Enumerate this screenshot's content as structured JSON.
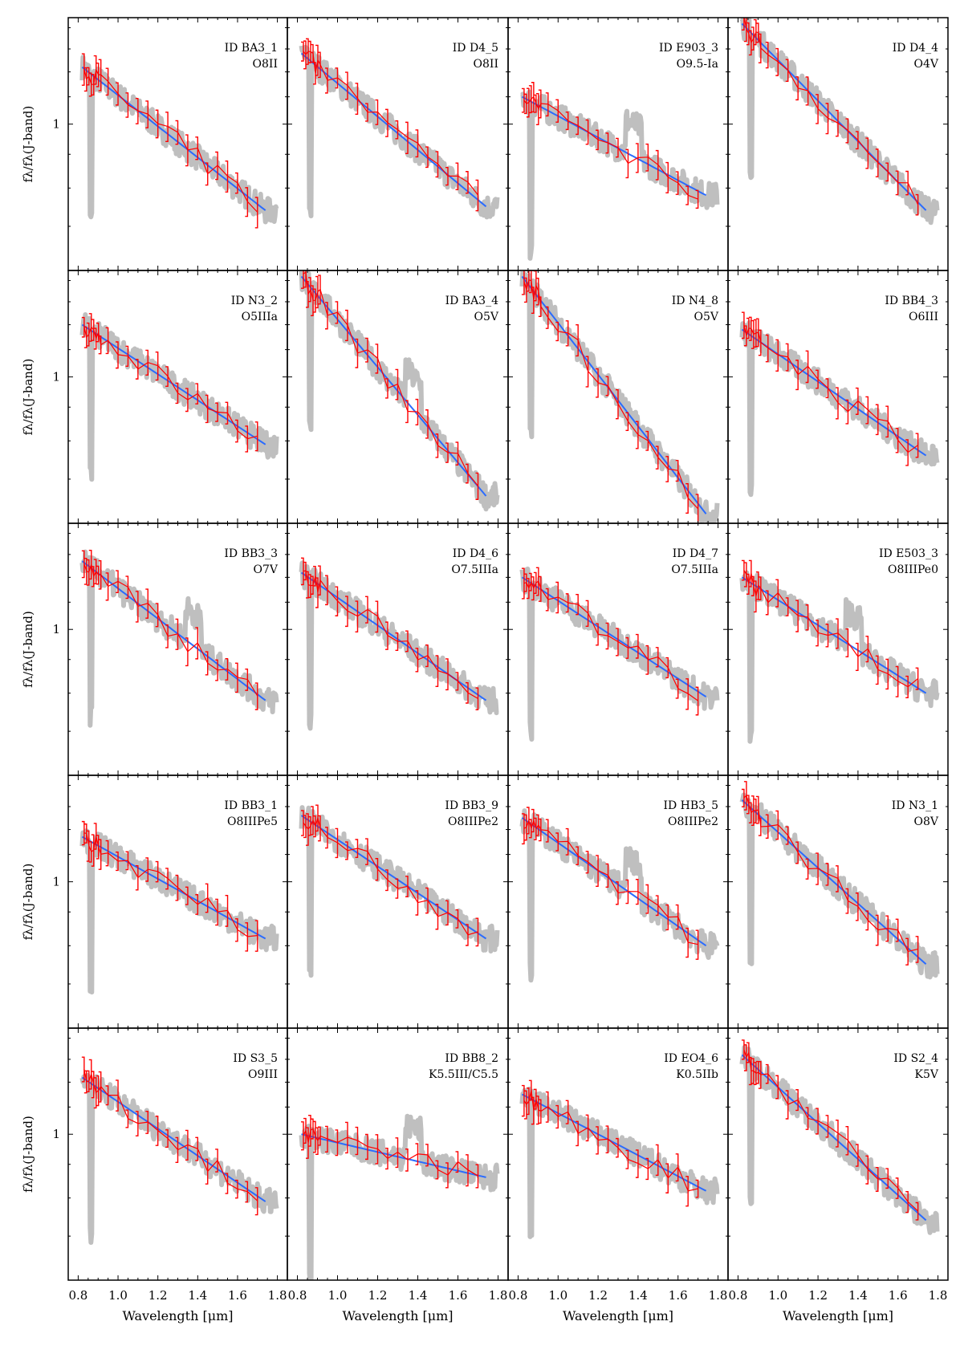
{
  "figure": {
    "x_axis_label": "Wavelength [μm]",
    "y_axis_label": "fλ/fλ(J-band)",
    "y_tick_label": "1"
  },
  "colors": {
    "observed_error_bars": "#ff0000",
    "model_fit": "#2a6bff",
    "template_spectrum": "#bfbfbf",
    "frame": "#000000"
  },
  "chart_data": {
    "type": "line",
    "layout": "5 rows x 4 columns grid of panels",
    "xlim": [
      0.75,
      1.85
    ],
    "x_ticks": [
      0.8,
      1.0,
      1.2,
      1.4,
      1.6,
      1.8
    ],
    "x_tick_labels": [
      "0.8",
      "1.0",
      "1.2",
      "1.4",
      "1.6",
      "1.8"
    ],
    "ylim": [
      0.6,
      1.45
    ],
    "y_scale": "log",
    "y_ticks": [
      1
    ],
    "xlabel": "Wavelength [μm]",
    "ylabel": "fλ/fλ(J-band)",
    "series_legend": [
      "observed SED (red points with error bars)",
      "model fit (blue line)",
      "template spectrum (grey)"
    ],
    "panels": [
      {
        "id": "ID BA3_1",
        "type": "O8II",
        "start": 1.22,
        "end": 0.74
      },
      {
        "id": "ID D4_5",
        "type": "O8II",
        "start": 1.28,
        "end": 0.75
      },
      {
        "id": "ID E903_3",
        "type": "O9.5-Ia",
        "start": 1.1,
        "end": 0.78
      },
      {
        "id": "ID D4_4",
        "type": "O4V",
        "start": 1.42,
        "end": 0.74
      },
      {
        "id": "ID N3_2",
        "type": "O5IIIa",
        "start": 1.2,
        "end": 0.79
      },
      {
        "id": "ID BA3_4",
        "type": "O5V",
        "start": 1.42,
        "end": 0.66
      },
      {
        "id": "ID N4_8",
        "type": "O5V",
        "start": 1.42,
        "end": 0.62
      },
      {
        "id": "ID BB4_3",
        "type": "O6III",
        "start": 1.18,
        "end": 0.76
      },
      {
        "id": "ID BB3_3",
        "type": "O7V",
        "start": 1.27,
        "end": 0.78
      },
      {
        "id": "ID D4_6",
        "type": "O7.5IIIa",
        "start": 1.22,
        "end": 0.78
      },
      {
        "id": "ID D4_7",
        "type": "O7.5IIIa",
        "start": 1.2,
        "end": 0.79
      },
      {
        "id": "ID E503_3",
        "type": "O8IIIPe0",
        "start": 1.2,
        "end": 0.8
      },
      {
        "id": "ID BB3_1",
        "type": "O8IIIPe5",
        "start": 1.17,
        "end": 0.82
      },
      {
        "id": "ID BB3_9",
        "type": "O8IIIPe2",
        "start": 1.26,
        "end": 0.82
      },
      {
        "id": "ID HB3_5",
        "type": "O8IIIPe2",
        "start": 1.25,
        "end": 0.8
      },
      {
        "id": "ID N3_1",
        "type": "O8V",
        "start": 1.33,
        "end": 0.75
      },
      {
        "id": "ID S3_5",
        "type": "O9III",
        "start": 1.22,
        "end": 0.79
      },
      {
        "id": "ID BB8_2",
        "type": "K5.5III/C5.5",
        "start": 1.0,
        "end": 0.86
      },
      {
        "id": "ID EO4_6",
        "type": "K0.5IIb",
        "start": 1.15,
        "end": 0.82
      },
      {
        "id": "ID S2_4",
        "type": "K5V",
        "start": 1.32,
        "end": 0.74
      }
    ]
  }
}
